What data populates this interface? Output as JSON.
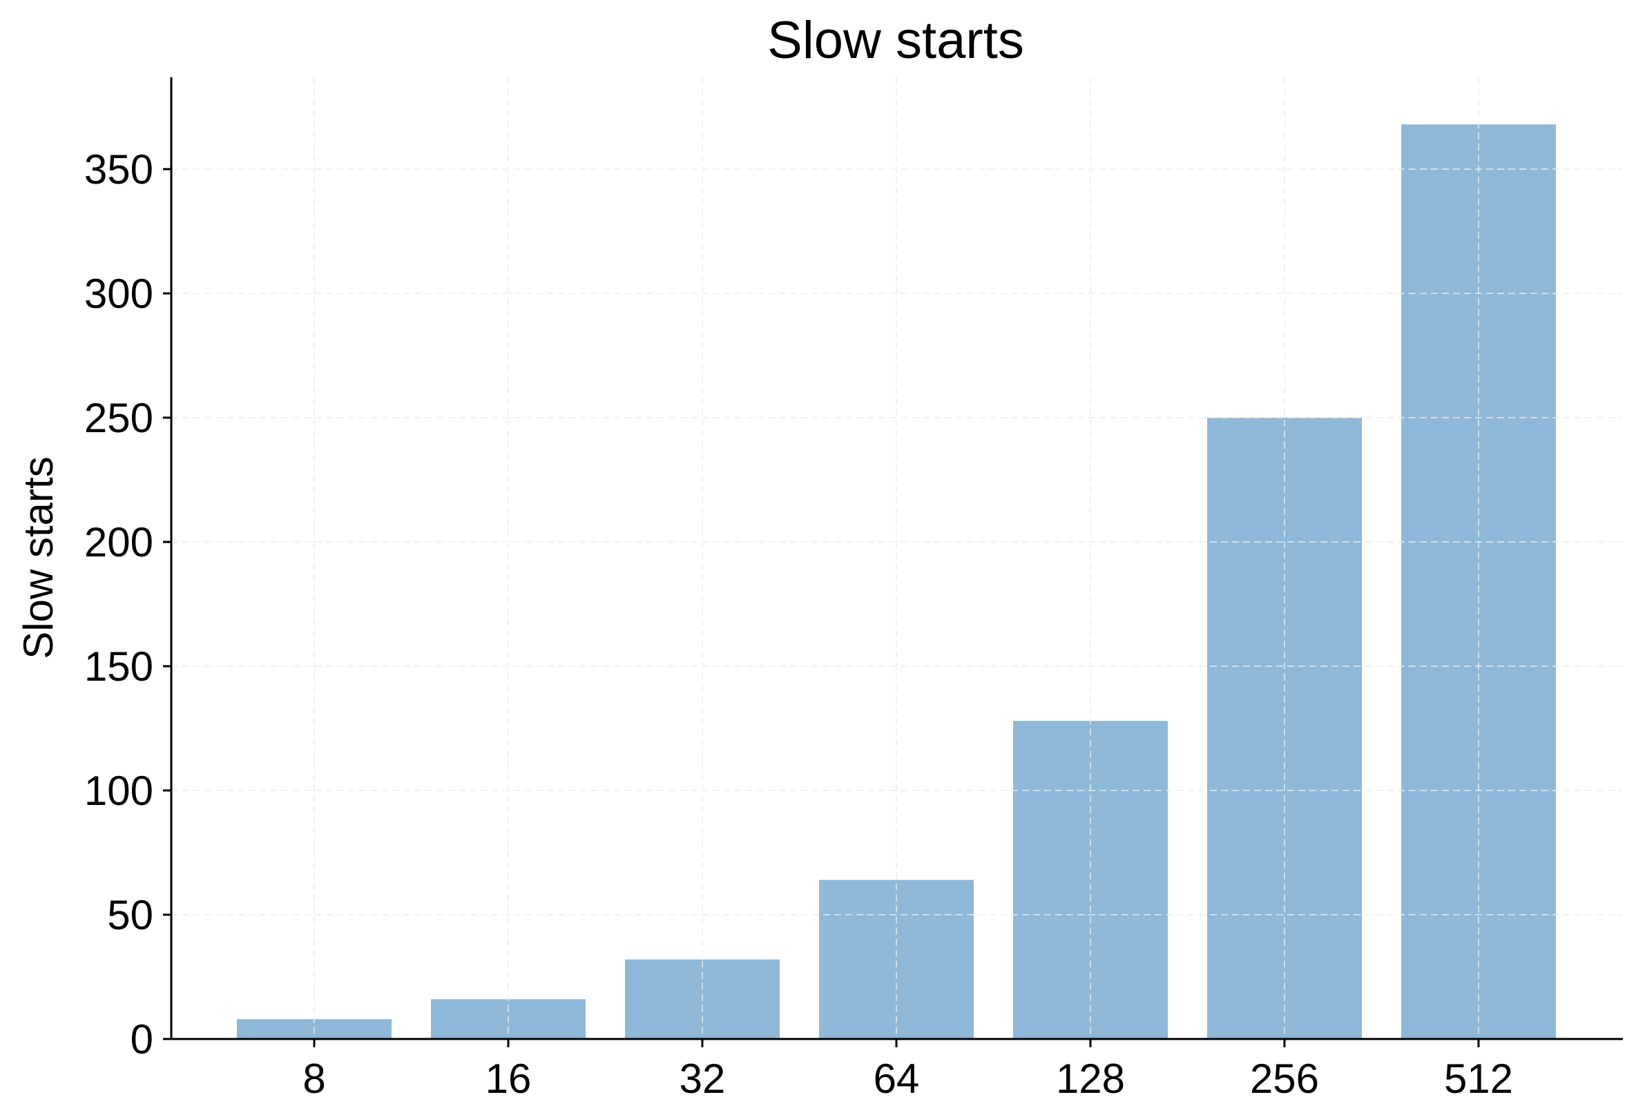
{
  "chart_data": {
    "type": "bar",
    "title": "Slow starts",
    "xlabel": "",
    "ylabel": "Slow starts",
    "categories": [
      "8",
      "16",
      "32",
      "64",
      "128",
      "256",
      "512"
    ],
    "values": [
      8,
      16,
      32,
      64,
      128,
      250,
      368
    ],
    "ylim": [
      0,
      387
    ],
    "yticks": [
      "0",
      "50",
      "100",
      "150",
      "200",
      "250",
      "300",
      "350"
    ],
    "grid": true,
    "bar_color": "#8fb8d8"
  }
}
